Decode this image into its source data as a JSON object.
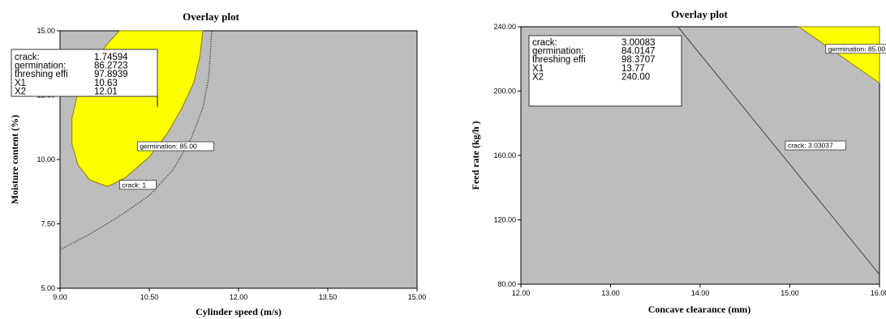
{
  "colors": {
    "region": "#bdbdbd",
    "feasible": "#ffff00",
    "edge": "#8a7d00",
    "line": "#444444"
  },
  "chart_data": [
    {
      "type": "contour",
      "title": "Overlay plot",
      "xlabel": "Cylinder speed (m/s)",
      "ylabel": "Moisture content (%)",
      "xlim": [
        9.0,
        15.0
      ],
      "ylim": [
        5.0,
        15.0
      ],
      "xticks": [
        "9.00",
        "10.50",
        "12.00",
        "13.50",
        "15.00"
      ],
      "yticks": [
        "5.00",
        "7.50",
        "10.00",
        "12.50",
        "15.00"
      ],
      "info": [
        {
          "label": "crack:",
          "value": "1.74594"
        },
        {
          "label": "germination:",
          "value": "86.2723"
        },
        {
          "label": "threshing effi",
          "value": "97.8939"
        },
        {
          "label": "X1",
          "value": "10.63"
        },
        {
          "label": "X2",
          "value": "12.01"
        }
      ],
      "flags": [
        {
          "text": "germination: 85.00",
          "x": 10.3,
          "y": 10.5
        },
        {
          "text": "crack: 1",
          "x": 10.0,
          "y": 9.0
        }
      ],
      "germination_contour": [
        [
          11.4,
          15.0
        ],
        [
          11.35,
          14.0
        ],
        [
          11.25,
          13.0
        ],
        [
          11.05,
          12.0
        ],
        [
          10.8,
          11.0
        ],
        [
          10.5,
          10.1
        ],
        [
          10.1,
          9.3
        ],
        [
          9.8,
          8.95
        ],
        [
          9.5,
          9.2
        ],
        [
          9.3,
          9.8
        ],
        [
          9.2,
          10.6
        ],
        [
          9.2,
          11.6
        ],
        [
          9.3,
          12.6
        ],
        [
          9.5,
          13.6
        ],
        [
          9.8,
          14.5
        ],
        [
          10.0,
          15.0
        ]
      ],
      "crack_contour": [
        [
          9.0,
          6.5
        ],
        [
          9.5,
          7.1
        ],
        [
          10.0,
          7.8
        ],
        [
          10.5,
          8.6
        ],
        [
          10.9,
          9.6
        ],
        [
          11.2,
          10.8
        ],
        [
          11.4,
          12.0
        ],
        [
          11.5,
          13.2
        ],
        [
          11.55,
          15.0
        ]
      ]
    },
    {
      "type": "contour",
      "title": "Overlay plot",
      "xlabel": "Concave clearance (mm)",
      "ylabel": "Feed rate (kg/h   )",
      "xlim": [
        12.0,
        16.0
      ],
      "ylim": [
        80.0,
        240.0
      ],
      "xticks": [
        "12.00",
        "13.00",
        "14.00",
        "15.00",
        "16.00"
      ],
      "yticks": [
        "80.00",
        "120.00",
        "160.00",
        "200.00",
        "240.00"
      ],
      "info": [
        {
          "label": "crack:",
          "value": "3.00083"
        },
        {
          "label": "germination:",
          "value": "84.0147"
        },
        {
          "label": "threshing effi",
          "value": "98.3707"
        },
        {
          "label": "X1",
          "value": "13.77"
        },
        {
          "label": "X2",
          "value": "240.00"
        }
      ],
      "flags": [
        {
          "text": "germination: 85.00",
          "x": 15.4,
          "y": 226.0
        },
        {
          "text": "crack: 3.03037",
          "x": 14.95,
          "y": 166.0
        }
      ],
      "germination_contour": [
        [
          15.1,
          240.0
        ],
        [
          16.0,
          240.0
        ],
        [
          16.0,
          205.0
        ]
      ],
      "crack_contour": [
        [
          13.75,
          240.0
        ],
        [
          16.0,
          86.0
        ]
      ]
    }
  ]
}
